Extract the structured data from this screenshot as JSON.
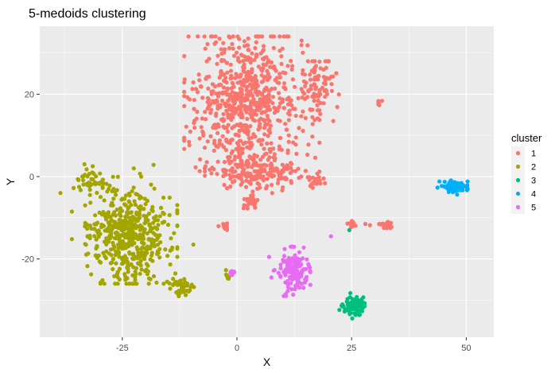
{
  "chart_data": {
    "type": "scatter",
    "title": "5-medoids clustering",
    "xlabel": "X",
    "ylabel": "Y",
    "xlim": [
      -43,
      56
    ],
    "ylim": [
      -39,
      36.5
    ],
    "x_ticks": [
      -25,
      0,
      25,
      50
    ],
    "y_ticks": [
      -20,
      0,
      20
    ],
    "grid": true,
    "panel_background": "#ebebeb",
    "grid_color": "#ffffff",
    "legend": {
      "title": "cluster",
      "placement": "right",
      "entries": [
        {
          "label": "1",
          "color": "#F8766D"
        },
        {
          "label": "2",
          "color": "#A3A500"
        },
        {
          "label": "3",
          "color": "#00BF7D"
        },
        {
          "label": "4",
          "color": "#00B0F6"
        },
        {
          "label": "5",
          "color": "#E76BF3"
        }
      ]
    },
    "series": [
      {
        "name": "1",
        "color": "#F8766D",
        "point_clouds": [
          {
            "cx": 2,
            "cy": 18,
            "sx": 6,
            "sy": 8,
            "n": 700,
            "xmin": -11.5,
            "xmax": 18,
            "ymin": 0,
            "ymax": 34
          },
          {
            "cx": 4,
            "cy": 1,
            "sx": 5,
            "sy": 2,
            "n": 180,
            "xmin": -7,
            "xmax": 20,
            "ymin": -4,
            "ymax": 6
          },
          {
            "cx": 17.5,
            "cy": 22,
            "sx": 2,
            "sy": 4,
            "n": 90,
            "xmin": 14,
            "xmax": 23,
            "ymin": 10,
            "ymax": 28
          },
          {
            "cx": 3,
            "cy": -6,
            "sx": 0.8,
            "sy": 0.8,
            "n": 35
          },
          {
            "cx": 17,
            "cy": -1,
            "sx": 0.9,
            "sy": 0.8,
            "n": 22
          },
          {
            "cx": -2.5,
            "cy": -12.5,
            "sx": 0.4,
            "sy": 0.4,
            "n": 12
          },
          {
            "cx": 32.5,
            "cy": -12,
            "sx": 0.8,
            "sy": 0.5,
            "n": 28
          },
          {
            "cx": 25,
            "cy": -11.5,
            "sx": 0.5,
            "sy": 0.4,
            "n": 12
          },
          {
            "cx": 31,
            "cy": 17.5,
            "sx": 0.3,
            "sy": 0.5,
            "n": 6
          }
        ],
        "points": [
          [
            28,
            -11.5
          ],
          [
            29,
            -11.8
          ],
          [
            21,
            13.5
          ]
        ]
      },
      {
        "name": "2",
        "color": "#A3A500",
        "point_clouds": [
          {
            "cx": -24,
            "cy": -14,
            "sx": 4.5,
            "sy": 6,
            "n": 520,
            "xmin": -36,
            "xmax": -13,
            "ymin": -26,
            "ymax": 3
          },
          {
            "cx": -31,
            "cy": -1,
            "sx": 2,
            "sy": 1.6,
            "n": 40
          },
          {
            "cx": -12,
            "cy": -27,
            "sx": 1.2,
            "sy": 1,
            "n": 45
          },
          {
            "cx": -2,
            "cy": -24.5,
            "sx": 0.7,
            "sy": 0.7,
            "n": 10
          }
        ],
        "points": [
          [
            -38.5,
            -4
          ],
          [
            -9.5,
            -16.5
          ],
          [
            -22.5,
            2
          ],
          [
            -20.5,
            -19.5
          ]
        ]
      },
      {
        "name": "3",
        "color": "#00BF7D",
        "point_clouds": [
          {
            "cx": 25.5,
            "cy": -31.5,
            "sx": 1.3,
            "sy": 1,
            "n": 90
          }
        ],
        "points": [
          [
            24.5,
            -13
          ]
        ]
      },
      {
        "name": "4",
        "color": "#00B0F6",
        "point_clouds": [
          {
            "cx": 47.5,
            "cy": -2.5,
            "sx": 1.3,
            "sy": 0.7,
            "n": 80
          }
        ],
        "points": []
      },
      {
        "name": "5",
        "color": "#E76BF3",
        "point_clouds": [
          {
            "cx": 12,
            "cy": -23,
            "sx": 1.8,
            "sy": 2.8,
            "n": 150,
            "xmin": 8,
            "xmax": 16,
            "ymin": -29,
            "ymax": -17
          },
          {
            "cx": -1,
            "cy": -23.5,
            "sx": 0.4,
            "sy": 0.4,
            "n": 10
          }
        ],
        "points": [
          [
            7,
            -19.5
          ],
          [
            7.5,
            -24.5
          ],
          [
            20.5,
            -14.5
          ],
          [
            14.5,
            -27
          ]
        ]
      }
    ]
  }
}
